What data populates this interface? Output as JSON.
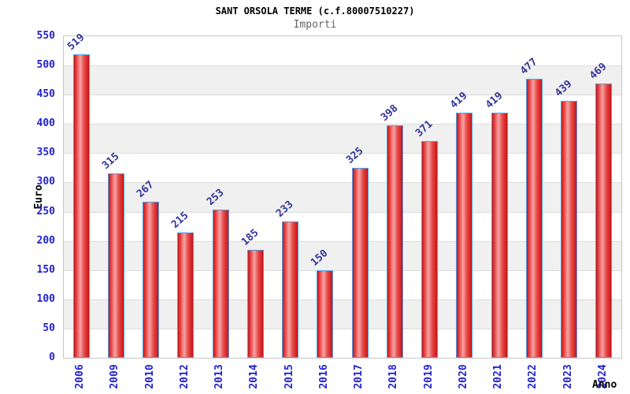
{
  "chart_data": {
    "type": "bar",
    "title": "SANT ORSOLA TERME (c.f.80007510227)",
    "subtitle": "Importi",
    "xlabel": "Anno",
    "ylabel": "Euro",
    "categories": [
      "2006",
      "2009",
      "2010",
      "2012",
      "2013",
      "2014",
      "2015",
      "2016",
      "2017",
      "2018",
      "2019",
      "2020",
      "2021",
      "2022",
      "2023",
      "2024"
    ],
    "values": [
      519,
      315,
      267,
      215,
      253,
      185,
      233,
      150,
      325,
      398,
      371,
      419,
      419,
      477,
      439,
      469
    ],
    "ylim": [
      0,
      550
    ],
    "yticks": [
      0,
      50,
      100,
      150,
      200,
      250,
      300,
      350,
      400,
      450,
      500,
      550
    ],
    "grid": "horizontal bands, gridline every 50",
    "legend": "none",
    "colors": {
      "bar_border": "#4aa0e6",
      "bar_dark": "#c81414",
      "bar_mid": "#e84848",
      "bar_light": "#f6a4a4",
      "tick_label": "#2222cc",
      "value_label": "#333399",
      "band_gray": "#f0f0f0",
      "gridline": "#dcdcdc",
      "plot_border": "#c6c6c6",
      "subtitle_gray": "#636363"
    }
  }
}
